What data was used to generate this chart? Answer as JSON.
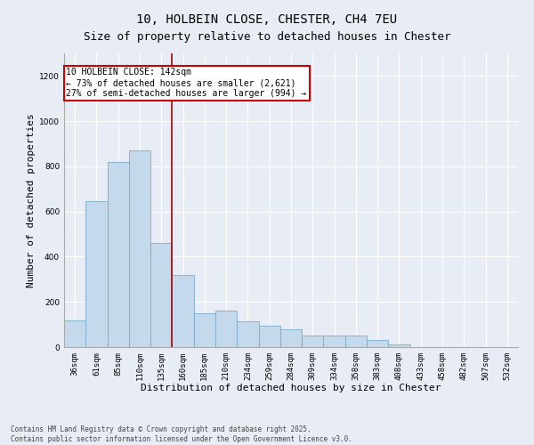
{
  "title": "10, HOLBEIN CLOSE, CHESTER, CH4 7EU",
  "subtitle": "Size of property relative to detached houses in Chester",
  "xlabel": "Distribution of detached houses by size in Chester",
  "ylabel": "Number of detached properties",
  "bar_color": "#c5d9ec",
  "bar_edge_color": "#7aaac8",
  "background_color": "#e8edf5",
  "grid_color": "#ffffff",
  "categories": [
    "36sqm",
    "61sqm",
    "85sqm",
    "110sqm",
    "135sqm",
    "160sqm",
    "185sqm",
    "210sqm",
    "234sqm",
    "259sqm",
    "284sqm",
    "309sqm",
    "334sqm",
    "358sqm",
    "383sqm",
    "408sqm",
    "433sqm",
    "458sqm",
    "482sqm",
    "507sqm",
    "532sqm"
  ],
  "values": [
    120,
    645,
    820,
    870,
    460,
    320,
    150,
    160,
    115,
    95,
    80,
    50,
    50,
    50,
    30,
    10,
    0,
    0,
    0,
    0,
    0
  ],
  "ylim": [
    0,
    1300
  ],
  "yticks": [
    0,
    200,
    400,
    600,
    800,
    1000,
    1200
  ],
  "vline_position": 4.5,
  "vline_color": "#aa0000",
  "annotation_text": "10 HOLBEIN CLOSE: 142sqm\n← 73% of detached houses are smaller (2,621)\n27% of semi-detached houses are larger (994) →",
  "annotation_box_color": "#ffffff",
  "annotation_box_edge": "#cc0000",
  "footnote": "Contains HM Land Registry data © Crown copyright and database right 2025.\nContains public sector information licensed under the Open Government Licence v3.0.",
  "title_fontsize": 10,
  "subtitle_fontsize": 9,
  "label_fontsize": 8,
  "tick_fontsize": 6.5,
  "annotation_fontsize": 7,
  "footnote_fontsize": 5.5
}
